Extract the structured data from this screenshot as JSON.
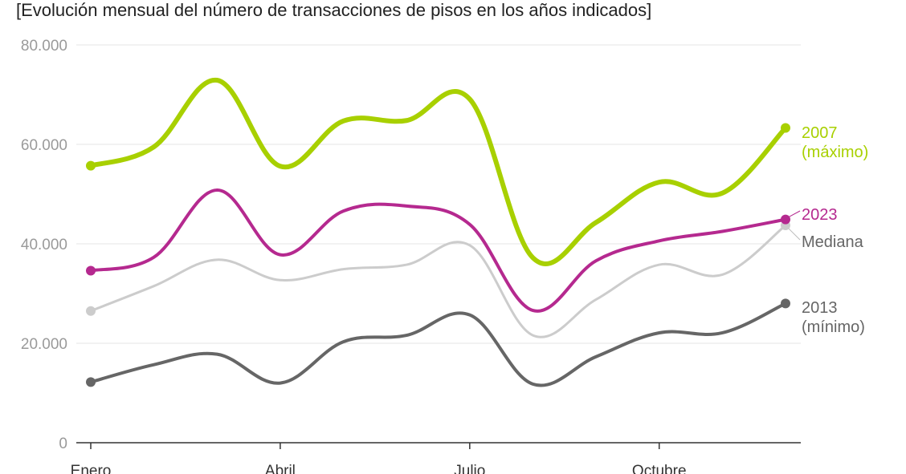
{
  "title": "[Evolución mensual del número de transacciones de pisos en los años indicados]",
  "chart_data": {
    "type": "line",
    "title": "[Evolución mensual del número de transacciones de pisos en los años indicados]",
    "xlabel": "",
    "ylabel": "",
    "x": [
      1,
      2,
      3,
      4,
      5,
      6,
      7,
      8,
      9,
      10,
      11,
      12
    ],
    "xticks": [
      {
        "month": 1,
        "label": "Enero"
      },
      {
        "month": 4,
        "label": "Abril"
      },
      {
        "month": 7,
        "label": "Julio"
      },
      {
        "month": 10,
        "label": "Octubre"
      }
    ],
    "yticks": [
      {
        "value": 0,
        "label": "0"
      },
      {
        "value": 20000,
        "label": "20.000"
      },
      {
        "value": 40000,
        "label": "40.000"
      },
      {
        "value": 60000,
        "label": "60.000"
      },
      {
        "value": 80000,
        "label": "80.000"
      }
    ],
    "ylim": [
      0,
      80000
    ],
    "grid": true,
    "legend": "inline labels at line ends (right)",
    "series": [
      {
        "name": "Mediana",
        "label_lines": [
          "Mediana"
        ],
        "color": "#cccccc",
        "width": 3,
        "values": [
          26500,
          31500,
          36800,
          32700,
          34900,
          35800,
          39700,
          21600,
          28800,
          35800,
          33800,
          43700
        ]
      },
      {
        "name": "2013",
        "label_lines": [
          "2013",
          "(mínimo)"
        ],
        "color": "#666666",
        "width": 4,
        "values": [
          12200,
          15700,
          17800,
          12000,
          20300,
          21600,
          25700,
          11800,
          17300,
          22100,
          22100,
          28000
        ]
      },
      {
        "name": "2023",
        "label_lines": [
          "2023"
        ],
        "color": "#b5298f",
        "width": 4,
        "values": [
          34600,
          37300,
          50800,
          37800,
          46600,
          47600,
          43900,
          26600,
          36600,
          40600,
          42500,
          44900
        ]
      },
      {
        "name": "2007",
        "label_lines": [
          "2007",
          "(máximo)"
        ],
        "color": "#a8d000",
        "width": 6,
        "values": [
          55700,
          59500,
          72900,
          55600,
          64700,
          64800,
          69100,
          37200,
          44300,
          52400,
          50200,
          63300
        ]
      }
    ]
  }
}
